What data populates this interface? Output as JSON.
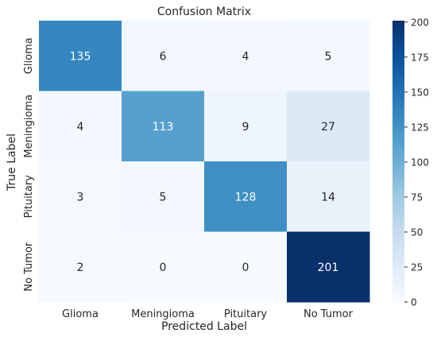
{
  "chart_data": {
    "type": "heatmap",
    "title": "Confusion Matrix",
    "xlabel": "Predicted Label",
    "ylabel": "True Label",
    "x_categories": [
      "Glioma",
      "Meningioma",
      "Pituitary",
      "No Tumor"
    ],
    "y_categories": [
      "Glioma",
      "Meningioma",
      "Pituitary",
      "No Tumor"
    ],
    "values": [
      [
        135,
        6,
        4,
        5
      ],
      [
        4,
        113,
        9,
        27
      ],
      [
        3,
        5,
        128,
        14
      ],
      [
        2,
        0,
        0,
        201
      ]
    ],
    "colorbar": {
      "range": [
        0,
        201
      ],
      "ticks": [
        0,
        25,
        50,
        75,
        100,
        125,
        150,
        175,
        200
      ],
      "colormap": "Blues"
    },
    "grid": false
  }
}
